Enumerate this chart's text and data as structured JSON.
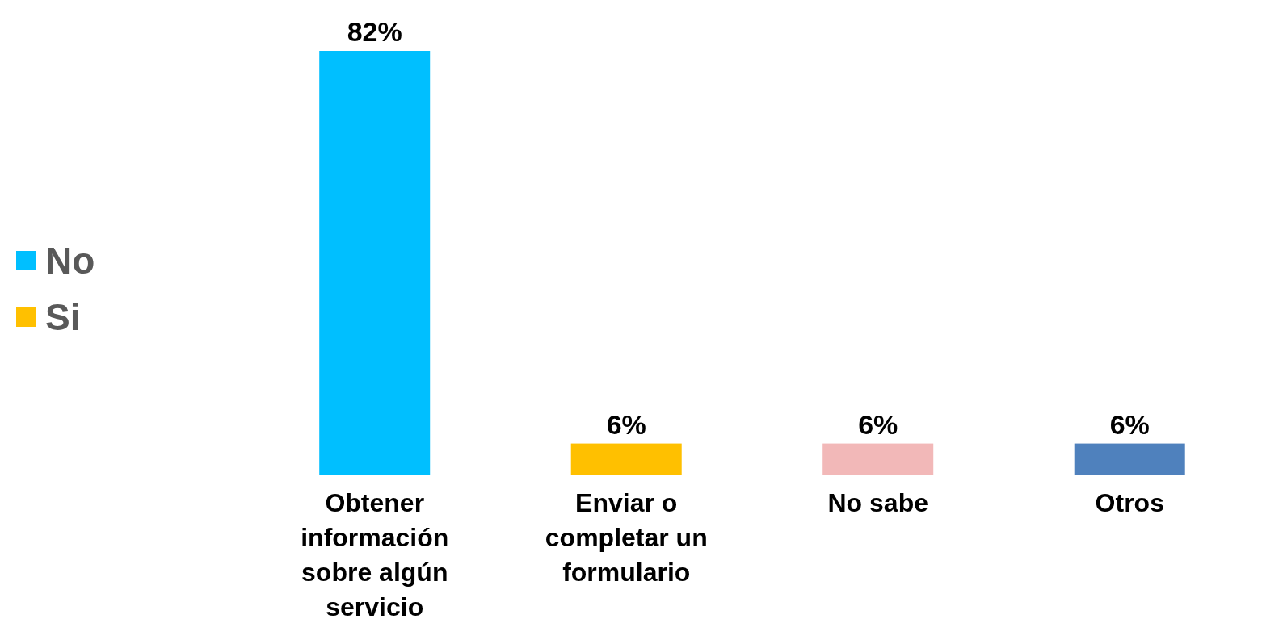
{
  "chart_data": {
    "type": "bar",
    "stacked": true,
    "legend": "left",
    "categories": [
      "Obtener información sobre algún servicio",
      "Enviar o completar un formulario",
      "No sabe",
      "Otros"
    ],
    "series": [
      {
        "name": "No",
        "color": "#00bfff",
        "values": [
          82,
          null,
          null,
          null
        ],
        "value_labels": [
          "82%",
          null,
          null,
          null
        ]
      },
      {
        "name": "Si",
        "color": "#ffc000",
        "values": [
          null,
          6,
          null,
          null
        ],
        "value_labels": [
          null,
          "6%",
          null,
          null
        ]
      },
      {
        "color": "#f2b8b8",
        "values": [
          null,
          null,
          6,
          null
        ],
        "value_labels": [
          null,
          null,
          "6%",
          null
        ]
      },
      {
        "color": "#4f81bd",
        "values": [
          null,
          null,
          null,
          6
        ],
        "value_labels": [
          null,
          null,
          null,
          "6%"
        ]
      }
    ]
  }
}
